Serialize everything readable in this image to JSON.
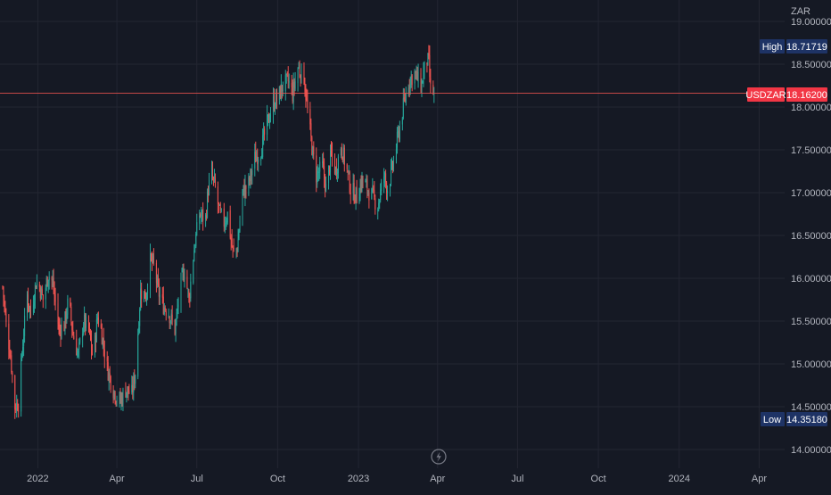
{
  "chart_data": {
    "type": "candlestick",
    "symbol": "USDZAR",
    "currency_label": "ZAR",
    "last_price_label": "18.16200",
    "high": {
      "label": "High",
      "value_label": "18.71719",
      "value": 18.71719
    },
    "low": {
      "label": "Low",
      "value_label": "14.35180",
      "value": 14.3518
    },
    "ylim": [
      13.94,
      19.12
    ],
    "y_ticks": [
      {
        "value": 19.0,
        "label": "19.00000"
      },
      {
        "value": 18.5,
        "label": "18.50000"
      },
      {
        "value": 18.0,
        "label": "18.00000"
      },
      {
        "value": 17.5,
        "label": "17.50000"
      },
      {
        "value": 17.0,
        "label": "17.00000"
      },
      {
        "value": 16.5,
        "label": "16.50000"
      },
      {
        "value": 16.0,
        "label": "16.00000"
      },
      {
        "value": 15.5,
        "label": "15.50000"
      },
      {
        "value": 15.0,
        "label": "15.00000"
      },
      {
        "value": 14.5,
        "label": "14.50000"
      },
      {
        "value": 14.0,
        "label": "14.00000"
      }
    ],
    "xlim": [
      "2021-11-19",
      "2024-04-30"
    ],
    "x_ticks": [
      {
        "date": "2022-01-01",
        "label": "2022"
      },
      {
        "date": "2022-04-01",
        "label": "Apr"
      },
      {
        "date": "2022-07-01",
        "label": "Jul"
      },
      {
        "date": "2022-10-01",
        "label": "Oct"
      },
      {
        "date": "2023-01-01",
        "label": "2023"
      },
      {
        "date": "2023-04-01",
        "label": "Apr"
      },
      {
        "date": "2023-07-01",
        "label": "Jul"
      },
      {
        "date": "2023-10-01",
        "label": "Oct"
      },
      {
        "date": "2024-01-01",
        "label": "2024"
      },
      {
        "date": "2024-04-01",
        "label": "Apr"
      }
    ],
    "price_path": [
      [
        "2021-11-22",
        15.9
      ],
      [
        "2021-11-26",
        15.45
      ],
      [
        "2021-12-01",
        15.1
      ],
      [
        "2021-12-06",
        14.5
      ],
      [
        "2021-12-10",
        14.55
      ],
      [
        "2021-12-15",
        15.25
      ],
      [
        "2021-12-20",
        15.8
      ],
      [
        "2021-12-24",
        15.6
      ],
      [
        "2021-12-30",
        15.95
      ],
      [
        "2022-01-03",
        15.9
      ],
      [
        "2022-01-07",
        15.75
      ],
      [
        "2022-01-13",
        16.05
      ],
      [
        "2022-01-18",
        15.95
      ],
      [
        "2022-01-25",
        15.4
      ],
      [
        "2022-01-31",
        15.45
      ],
      [
        "2022-02-05",
        15.75
      ],
      [
        "2022-02-10",
        15.35
      ],
      [
        "2022-02-16",
        15.1
      ],
      [
        "2022-02-22",
        15.5
      ],
      [
        "2022-02-28",
        15.4
      ],
      [
        "2022-03-05",
        15.05
      ],
      [
        "2022-03-10",
        15.55
      ],
      [
        "2022-03-14",
        15.4
      ],
      [
        "2022-03-21",
        14.95
      ],
      [
        "2022-03-28",
        14.7
      ],
      [
        "2022-04-04",
        14.55
      ],
      [
        "2022-04-11",
        14.7
      ],
      [
        "2022-04-18",
        14.65
      ],
      [
        "2022-04-22",
        14.9
      ],
      [
        "2022-04-28",
        15.85
      ],
      [
        "2022-05-04",
        15.8
      ],
      [
        "2022-05-09",
        16.2
      ],
      [
        "2022-05-13",
        16.15
      ],
      [
        "2022-05-18",
        15.85
      ],
      [
        "2022-05-23",
        15.7
      ],
      [
        "2022-05-30",
        15.6
      ],
      [
        "2022-06-06",
        15.4
      ],
      [
        "2022-06-13",
        15.95
      ],
      [
        "2022-06-17",
        16.1
      ],
      [
        "2022-06-22",
        15.75
      ],
      [
        "2022-06-28",
        16.35
      ],
      [
        "2022-07-04",
        16.75
      ],
      [
        "2022-07-11",
        16.7
      ],
      [
        "2022-07-14",
        17.05
      ],
      [
        "2022-07-18",
        17.2
      ],
      [
        "2022-07-22",
        17.05
      ],
      [
        "2022-07-27",
        16.75
      ],
      [
        "2022-08-01",
        16.65
      ],
      [
        "2022-08-05",
        16.75
      ],
      [
        "2022-08-11",
        16.3
      ],
      [
        "2022-08-16",
        16.35
      ],
      [
        "2022-08-22",
        17.0
      ],
      [
        "2022-08-29",
        17.1
      ],
      [
        "2022-09-05",
        17.4
      ],
      [
        "2022-09-12",
        17.5
      ],
      [
        "2022-09-19",
        17.8
      ],
      [
        "2022-09-26",
        18.05
      ],
      [
        "2022-10-01",
        18.1
      ],
      [
        "2022-10-07",
        18.25
      ],
      [
        "2022-10-13",
        18.3
      ],
      [
        "2022-10-18",
        18.15
      ],
      [
        "2022-10-24",
        18.45
      ],
      [
        "2022-10-31",
        18.35
      ],
      [
        "2022-11-04",
        17.95
      ],
      [
        "2022-11-10",
        17.45
      ],
      [
        "2022-11-14",
        17.2
      ],
      [
        "2022-11-21",
        17.3
      ],
      [
        "2022-11-25",
        17.05
      ],
      [
        "2022-12-01",
        17.45
      ],
      [
        "2022-12-06",
        17.25
      ],
      [
        "2022-12-12",
        17.55
      ],
      [
        "2022-12-19",
        17.25
      ],
      [
        "2022-12-23",
        17.05
      ],
      [
        "2022-12-30",
        16.95
      ],
      [
        "2023-01-05",
        17.15
      ],
      [
        "2023-01-11",
        17.05
      ],
      [
        "2023-01-17",
        16.95
      ],
      [
        "2023-01-23",
        16.85
      ],
      [
        "2023-01-30",
        17.2
      ],
      [
        "2023-02-03",
        17.05
      ],
      [
        "2023-02-08",
        17.25
      ],
      [
        "2023-02-14",
        17.6
      ],
      [
        "2023-02-20",
        17.95
      ],
      [
        "2023-02-27",
        18.3
      ],
      [
        "2023-03-06",
        18.4
      ],
      [
        "2023-03-10",
        18.3
      ],
      [
        "2023-03-14",
        18.25
      ],
      [
        "2023-03-16",
        18.4
      ],
      [
        "2023-03-20",
        18.55
      ],
      [
        "2023-03-22",
        18.5
      ],
      [
        "2023-03-24",
        18.2
      ],
      [
        "2023-03-28",
        18.162
      ]
    ]
  },
  "toolbar": {
    "replay_icon": "lightning-icon"
  },
  "colors": {
    "background": "#151924",
    "grid": "#232632",
    "axis_text": "#b2b5be",
    "candle_up": "#26a69a",
    "candle_down": "#ef5350",
    "price_line": "#ef5350",
    "price_badge": "#f23645",
    "extreme_badge": "#1e3365"
  }
}
